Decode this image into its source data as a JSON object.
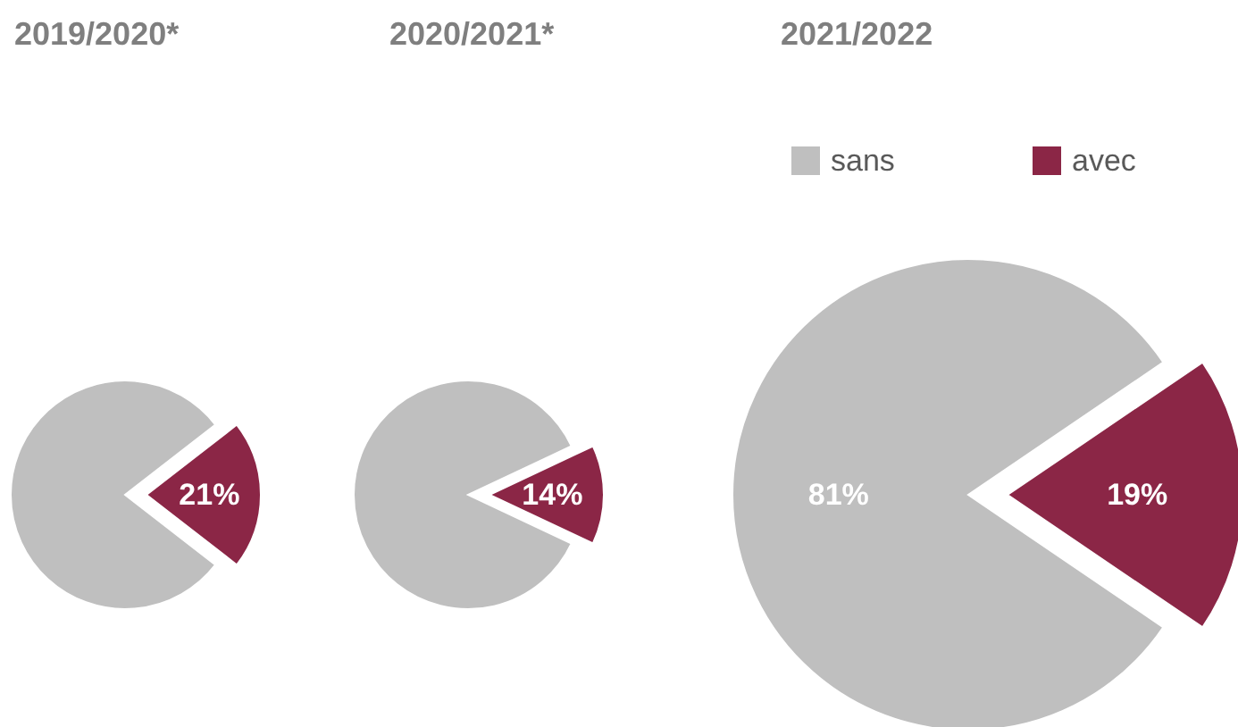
{
  "chart_data": [
    {
      "type": "pie",
      "title": "2019/2020*",
      "categories": [
        null,
        null
      ],
      "values": [
        79,
        21
      ],
      "colors": [
        "#bfbfbf",
        "#8b2646"
      ],
      "value_labels": [
        null,
        "21%"
      ],
      "legend": false
    },
    {
      "type": "pie",
      "title": "2020/2021*",
      "categories": [
        null,
        null
      ],
      "values": [
        86,
        14
      ],
      "colors": [
        "#bfbfbf",
        "#8b2646"
      ],
      "value_labels": [
        null,
        "14%"
      ],
      "legend": false
    },
    {
      "type": "pie",
      "title": "2021/2022",
      "categories": [
        "sans",
        "avec"
      ],
      "values": [
        81,
        19
      ],
      "colors": [
        "#bfbfbf",
        "#8b2646"
      ],
      "value_labels": [
        "81%",
        "19%"
      ],
      "legend": "top"
    }
  ]
}
